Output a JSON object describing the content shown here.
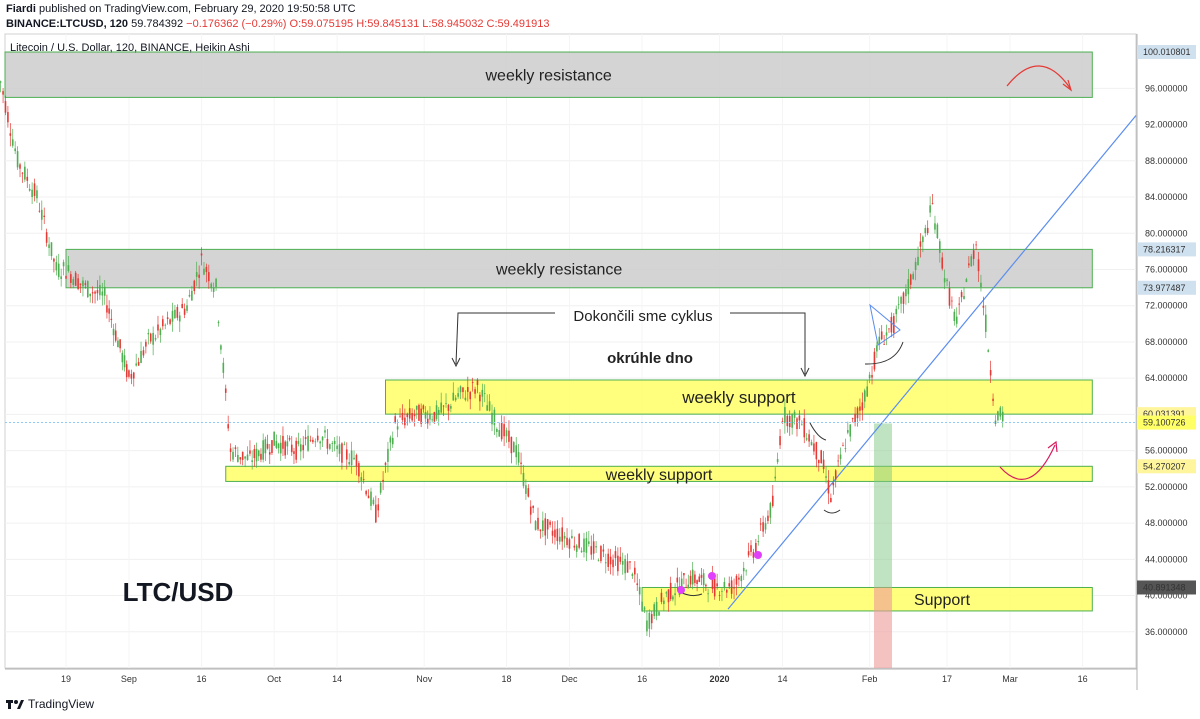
{
  "header": {
    "author": "Fiardi",
    "published": "published on TradingView.com, February 29, 2020 19:50:58 UTC",
    "symbol": "BINANCE:LTCUSD, 120",
    "last": "59.784392",
    "change": "−0.176362 (−0.29%)",
    "o": "O:59.075195",
    "h": "H:59.845131",
    "l": "L:58.945032",
    "c": "C:59.491913"
  },
  "chart_title": "Litecoin / U.S. Dollar, 120, BINANCE, Heikin Ashi",
  "footer": {
    "brand": "TradingView"
  },
  "chart_data": {
    "type": "candlestick",
    "ylim": [
      32,
      102
    ],
    "y_ticks": [
      36,
      40,
      44,
      48,
      52,
      56,
      60,
      64,
      68,
      72,
      76,
      80,
      84,
      88,
      92,
      96
    ],
    "x_ticks": [
      "19",
      "Sep",
      "16",
      "Oct",
      "14",
      "Nov",
      "18",
      "Dec",
      "16",
      "2020",
      "14",
      "Feb",
      "17",
      "Mar",
      "16"
    ],
    "price_labels": [
      {
        "value": "100.010801",
        "price": 100.01,
        "bg": "#cfe0ee",
        "fg": "#131722"
      },
      {
        "value": "78.216317",
        "price": 78.22,
        "bg": "#cfe0ee",
        "fg": "#131722"
      },
      {
        "value": "73.977487",
        "price": 73.98,
        "bg": "#cfe0ee",
        "fg": "#131722"
      },
      {
        "value": "60.031391",
        "price": 60.03,
        "bg": "#fff59d",
        "fg": "#131722"
      },
      {
        "value": "59.100726",
        "price": 59.1,
        "bg": "#ffff66",
        "fg": "#131722"
      },
      {
        "value": "54.270207",
        "price": 54.27,
        "bg": "#fff59d",
        "fg": "#131722"
      },
      {
        "value": "40.891348",
        "price": 40.89,
        "bg": "#555555",
        "fg": "#ffffff"
      }
    ],
    "zones": [
      {
        "label": "weekly resistance",
        "from": 95.0,
        "to": 100.01,
        "color": "#cccccc",
        "border": "#4caf50",
        "x0": "start",
        "x1": "end"
      },
      {
        "label": "weekly resistance",
        "from": 73.98,
        "to": 78.22,
        "color": "#cccccc",
        "border": "#4caf50",
        "x0": "Aug 19",
        "x1": "end"
      },
      {
        "label": "weekly support",
        "from": 60.03,
        "to": 63.8,
        "color": "#ffff66",
        "border": "#4caf50",
        "x0": "Oct 24",
        "x1": "end"
      },
      {
        "label": "weekly support",
        "from": 52.6,
        "to": 54.27,
        "color": "#ffff66",
        "border": "#4caf50",
        "x0": "Sep 21",
        "x1": "end"
      },
      {
        "label": "Support",
        "from": 38.3,
        "to": 40.89,
        "color": "#ffff66",
        "border": "#4caf50",
        "x0": "Dec 16",
        "x1": "end"
      }
    ],
    "annotations": {
      "cycle": "Dokončili sme cyklus",
      "round_bottom": "okrúhle dno",
      "pair": "LTC/USD"
    },
    "colors": {
      "up": "#4caf50",
      "down": "#e53935",
      "trendline": "#5b8def",
      "arrow": "#d81b60"
    },
    "series": [
      {
        "date": "Aug 05",
        "close": 98
      },
      {
        "date": "Aug 09",
        "close": 88
      },
      {
        "date": "Aug 13",
        "close": 84
      },
      {
        "date": "Aug 17",
        "close": 76
      },
      {
        "date": "Aug 19",
        "close": 76
      },
      {
        "date": "Aug 23",
        "close": 74
      },
      {
        "date": "Aug 27",
        "close": 73
      },
      {
        "date": "Sep 01",
        "close": 64
      },
      {
        "date": "Sep 05",
        "close": 68
      },
      {
        "date": "Sep 09",
        "close": 70
      },
      {
        "date": "Sep 13",
        "close": 72
      },
      {
        "date": "Sep 16",
        "close": 77
      },
      {
        "date": "Sep 19",
        "close": 74
      },
      {
        "date": "Sep 22",
        "close": 56
      },
      {
        "date": "Sep 26",
        "close": 55
      },
      {
        "date": "Oct 01",
        "close": 57
      },
      {
        "date": "Oct 06",
        "close": 56
      },
      {
        "date": "Oct 10",
        "close": 58
      },
      {
        "date": "Oct 14",
        "close": 56
      },
      {
        "date": "Oct 18",
        "close": 55
      },
      {
        "date": "Oct 22",
        "close": 49
      },
      {
        "date": "Oct 26",
        "close": 59
      },
      {
        "date": "Oct 30",
        "close": 60
      },
      {
        "date": "Nov 04",
        "close": 60
      },
      {
        "date": "Nov 08",
        "close": 62
      },
      {
        "date": "Nov 12",
        "close": 63
      },
      {
        "date": "Nov 16",
        "close": 59
      },
      {
        "date": "Nov 20",
        "close": 56
      },
      {
        "date": "Nov 24",
        "close": 48
      },
      {
        "date": "Nov 28",
        "close": 47
      },
      {
        "date": "Dec 02",
        "close": 46
      },
      {
        "date": "Dec 06",
        "close": 45
      },
      {
        "date": "Dec 10",
        "close": 44
      },
      {
        "date": "Dec 14",
        "close": 43
      },
      {
        "date": "Dec 17",
        "close": 37
      },
      {
        "date": "Dec 21",
        "close": 40
      },
      {
        "date": "Dec 26",
        "close": 42
      },
      {
        "date": "Dec 31",
        "close": 41
      },
      {
        "date": "Jan 04",
        "close": 41
      },
      {
        "date": "Jan 08",
        "close": 45
      },
      {
        "date": "Jan 12",
        "close": 50
      },
      {
        "date": "Jan 14",
        "close": 60
      },
      {
        "date": "Jan 18",
        "close": 59
      },
      {
        "date": "Jan 22",
        "close": 55
      },
      {
        "date": "Jan 24",
        "close": 51
      },
      {
        "date": "Jan 27",
        "close": 57
      },
      {
        "date": "Jan 31",
        "close": 62
      },
      {
        "date": "Feb 03",
        "close": 68
      },
      {
        "date": "Feb 06",
        "close": 70
      },
      {
        "date": "Feb 09",
        "close": 74
      },
      {
        "date": "Feb 12",
        "close": 79
      },
      {
        "date": "Feb 14",
        "close": 83
      },
      {
        "date": "Feb 17",
        "close": 74
      },
      {
        "date": "Feb 19",
        "close": 70
      },
      {
        "date": "Feb 21",
        "close": 75
      },
      {
        "date": "Feb 23",
        "close": 79
      },
      {
        "date": "Feb 25",
        "close": 70
      },
      {
        "date": "Feb 27",
        "close": 60
      },
      {
        "date": "Feb 29",
        "close": 59.5
      }
    ]
  }
}
